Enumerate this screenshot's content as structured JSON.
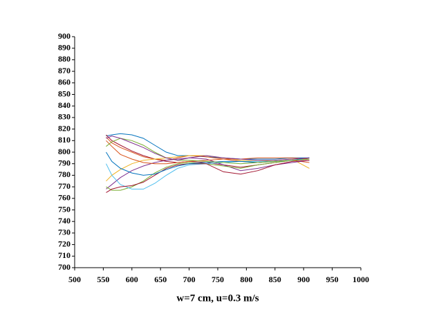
{
  "chart_data": {
    "type": "line",
    "xlabel": "w=7 cm, u=0.3 m/s",
    "x": [
      555,
      565,
      580,
      600,
      620,
      640,
      660,
      680,
      700,
      730,
      760,
      790,
      820,
      850,
      880,
      910
    ],
    "xlim": [
      500,
      1000
    ],
    "xticks": [
      500,
      550,
      600,
      650,
      700,
      750,
      800,
      850,
      900,
      950,
      1000
    ],
    "ylim": [
      700,
      900
    ],
    "yticks": [
      700,
      710,
      720,
      730,
      740,
      750,
      760,
      770,
      780,
      790,
      800,
      810,
      820,
      830,
      840,
      850,
      860,
      870,
      880,
      890,
      900
    ],
    "grid": false,
    "series": [
      {
        "color": "#0072BD",
        "values": [
          814,
          815,
          816,
          815,
          812,
          806,
          800,
          797,
          797,
          796,
          795,
          794,
          794,
          794,
          795,
          795
        ]
      },
      {
        "color": "#A2142F",
        "values": [
          815,
          810,
          806,
          801,
          797,
          794,
          792,
          791,
          792,
          791,
          789,
          787,
          789,
          791,
          793,
          795
        ]
      },
      {
        "color": "#D95319",
        "values": [
          813,
          808,
          804,
          800,
          796,
          794,
          793,
          795,
          797,
          796,
          794,
          792,
          791,
          792,
          793,
          791
        ]
      },
      {
        "color": "#EDB120",
        "values": [
          775,
          780,
          785,
          790,
          793,
          794,
          795,
          796,
          797,
          797,
          795,
          793,
          792,
          793,
          794,
          786
        ]
      },
      {
        "color": "#7E2F8E",
        "values": [
          768,
          772,
          778,
          784,
          788,
          791,
          793,
          794,
          795,
          794,
          789,
          784,
          786,
          789,
          791,
          793
        ]
      },
      {
        "color": "#77AC30",
        "values": [
          770,
          767,
          767,
          770,
          775,
          782,
          787,
          790,
          791,
          790,
          788,
          786,
          789,
          791,
          793,
          794
        ]
      },
      {
        "color": "#4DBEEE",
        "values": [
          790,
          780,
          772,
          768,
          768,
          773,
          780,
          786,
          789,
          790,
          791,
          792,
          792,
          792,
          793,
          794
        ]
      },
      {
        "color": "#A2142F",
        "values": [
          765,
          768,
          770,
          771,
          774,
          780,
          786,
          789,
          790,
          790,
          783,
          781,
          784,
          789,
          792,
          793
        ]
      },
      {
        "color": "#0072BD",
        "values": [
          800,
          792,
          786,
          782,
          780,
          781,
          785,
          788,
          790,
          791,
          792,
          792,
          791,
          792,
          793,
          795
        ]
      },
      {
        "color": "#D95319",
        "values": [
          810,
          805,
          798,
          794,
          791,
          790,
          790,
          791,
          792,
          793,
          794,
          794,
          795,
          795,
          795,
          794
        ]
      },
      {
        "color": "#77AC30",
        "values": [
          805,
          809,
          812,
          810,
          806,
          800,
          795,
          793,
          793,
          792,
          791,
          790,
          791,
          792,
          793,
          794
        ]
      },
      {
        "color": "#7E2F8E",
        "values": [
          812,
          814,
          812,
          808,
          804,
          799,
          795,
          793,
          795,
          797,
          795,
          794,
          793,
          793,
          794,
          795
        ]
      }
    ]
  }
}
